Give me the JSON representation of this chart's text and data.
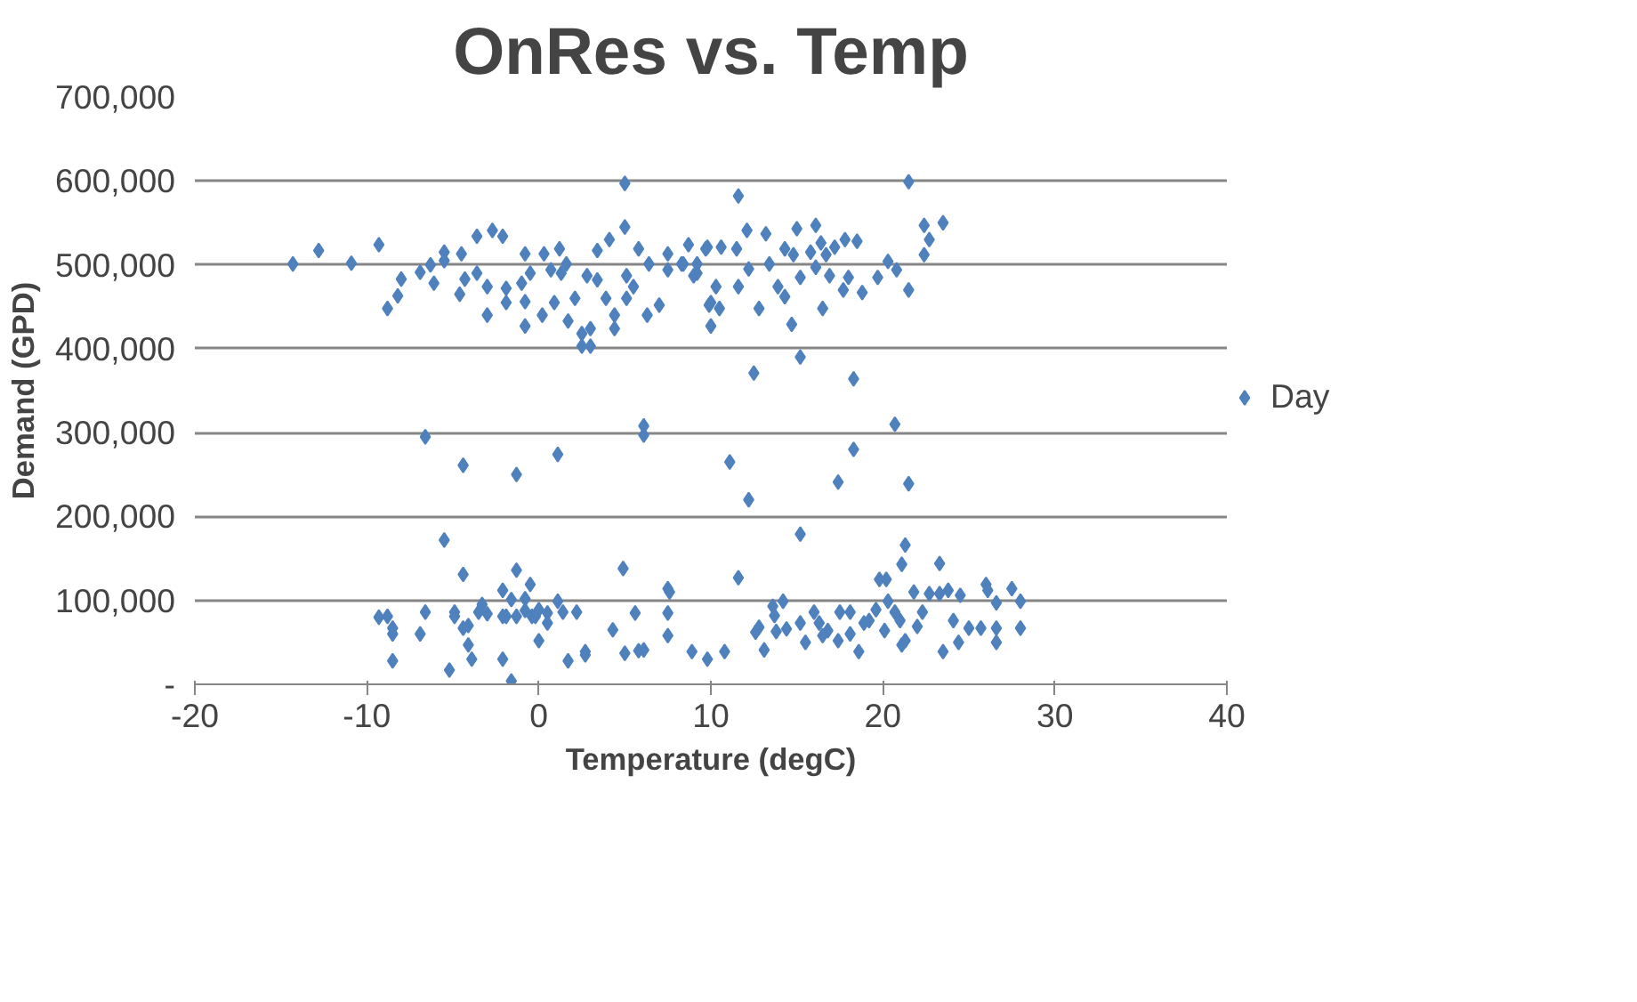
{
  "chart_data": {
    "type": "scatter",
    "title": "OnRes vs. Temp",
    "xlabel": "Temperature (degC)",
    "ylabel": "Demand (GPD)",
    "xlim": [
      -20,
      40
    ],
    "xticks": [
      -20,
      -10,
      0,
      10,
      20,
      30,
      40
    ],
    "ylim": [
      0,
      700000
    ],
    "yticks": [
      {
        "value": 0,
        "label": "-"
      },
      {
        "value": 100000,
        "label": "100,000"
      },
      {
        "value": 200000,
        "label": "200,000"
      },
      {
        "value": 300000,
        "label": "300,000"
      },
      {
        "value": 400000,
        "label": "400,000"
      },
      {
        "value": 500000,
        "label": "500,000"
      },
      {
        "value": 600000,
        "label": "600,000"
      },
      {
        "value": 700000,
        "label": "700,000"
      }
    ],
    "grid": "y",
    "legend": "right",
    "marker": "diamond",
    "series": [
      {
        "name": "Day",
        "color": "#4f81bd",
        "x": [
          -14.3,
          -12.8,
          -10.9,
          -9.3,
          -8.8,
          -8.2,
          -8.0,
          -6.9,
          -6.3,
          -6.1,
          -5.5,
          -5.5,
          -4.6,
          -4.5,
          -4.3,
          -3.6,
          -3.6,
          -3.0,
          -3.0,
          -2.7,
          -2.1,
          -1.9,
          -1.9,
          -1.0,
          -0.8,
          -0.8,
          -0.8,
          -0.5,
          0.3,
          0.2,
          0.7,
          0.9,
          1.2,
          1.3,
          1.6,
          1.7,
          2.1,
          2.5,
          2.5,
          3.0,
          3.0,
          2.8,
          3.4,
          3.4,
          3.9,
          4.1,
          4.4,
          4.4,
          5.0,
          5.0,
          5.1,
          5.1,
          5.5,
          5.8,
          6.3,
          6.4,
          7.0,
          7.5,
          7.5,
          8.3,
          8.7,
          9.2,
          9.2,
          9.7,
          10.0,
          10.0,
          8.4,
          9.0,
          9.8,
          10.6,
          11.6,
          11.5,
          11.6,
          10.3,
          9.9,
          10.5,
          12.1,
          12.2,
          12.5,
          12.8,
          13.2,
          13.4,
          13.9,
          14.3,
          14.3,
          14.7,
          14.8,
          15.0,
          15.2,
          15.2,
          15.8,
          16.1,
          16.1,
          16.4,
          16.5,
          16.7,
          16.9,
          17.2,
          17.7,
          17.8,
          18.0,
          18.3,
          18.5,
          18.8,
          19.7,
          20.3,
          20.8,
          20.7,
          21.5,
          21.5,
          22.4,
          22.7,
          22.4,
          23.5,
          -6.6,
          -4.4,
          -1.3,
          1.1,
          6.1,
          6.1,
          -5.5,
          -4.4,
          -1.3,
          4.9,
          7.5,
          7.6,
          11.1,
          12.2,
          17.4,
          18.3,
          21.5,
          15.2,
          11.6,
          21.3,
          21.1,
          23.3,
          -9.3,
          -8.8,
          -8.5,
          -8.5,
          -8.5,
          -6.9,
          -6.6,
          -5.2,
          -4.9,
          -4.9,
          -4.4,
          -4.1,
          -4.1,
          -3.9,
          -3.5,
          -3.3,
          -3.0,
          -2.1,
          -2.1,
          -2.1,
          -1.9,
          -1.6,
          -1.6,
          -1.3,
          -0.8,
          -0.8,
          -0.5,
          -0.4,
          -0.2,
          0.0,
          0.0,
          0.5,
          0.5,
          1.1,
          1.4,
          1.7,
          2.2,
          2.7,
          2.7,
          4.3,
          5.0,
          5.6,
          5.8,
          6.1,
          7.5,
          7.5,
          8.9,
          9.8,
          10.8,
          13.1,
          12.6,
          12.8,
          13.7,
          13.6,
          14.2,
          14.4,
          13.8,
          15.2,
          15.5,
          16.0,
          16.3,
          16.5,
          16.8,
          17.4,
          17.5,
          18.1,
          18.1,
          18.6,
          18.9,
          19.2,
          19.6,
          19.8,
          20.2,
          20.1,
          20.3,
          20.7,
          21.0,
          21.1,
          21.3,
          21.8,
          22.0,
          22.3,
          22.7,
          23.3,
          23.5,
          23.8,
          24.1,
          24.4,
          24.5,
          25.0,
          25.7,
          26.0,
          26.1,
          26.6,
          26.6,
          26.6,
          27.5,
          28.0,
          28.0
        ],
        "values": [
          501000,
          517000,
          502000,
          524000,
          448000,
          463000,
          483000,
          491000,
          500000,
          478000,
          515000,
          505000,
          465000,
          513000,
          483000,
          534000,
          490000,
          440000,
          474000,
          541000,
          534000,
          472000,
          455000,
          478000,
          513000,
          456000,
          427000,
          490000,
          513000,
          440000,
          494000,
          455000,
          519000,
          490000,
          501000,
          433000,
          460000,
          418000,
          403000,
          403000,
          424000,
          487000,
          517000,
          482000,
          460000,
          530000,
          424000,
          440000,
          597000,
          545000,
          487000,
          460000,
          474000,
          519000,
          440000,
          501000,
          452000,
          513000,
          494000,
          501000,
          524000,
          490000,
          501000,
          519000,
          455000,
          427000,
          501000,
          487000,
          521000,
          521000,
          582000,
          519000,
          474000,
          474000,
          452000,
          448000,
          541000,
          495000,
          371000,
          448000,
          537000,
          501000,
          474000,
          519000,
          462000,
          429000,
          512000,
          543000,
          390000,
          485000,
          515000,
          547000,
          497000,
          526000,
          448000,
          512000,
          487000,
          521000,
          470000,
          530000,
          485000,
          364000,
          528000,
          467000,
          485000,
          504000,
          494000,
          310000,
          599000,
          470000,
          547000,
          530000,
          512000,
          550000,
          295000,
          261000,
          250000,
          274000,
          308000,
          297000,
          172000,
          131000,
          136000,
          138000,
          114000,
          110000,
          265000,
          220000,
          241000,
          280000,
          239000,
          179000,
          127000,
          166000,
          143000,
          144000,
          80000,
          81000,
          67000,
          60000,
          28000,
          60000,
          86000,
          17000,
          86000,
          81000,
          67000,
          70000,
          47000,
          30000,
          86000,
          95000,
          84000,
          112000,
          81000,
          30000,
          81000,
          101000,
          4000,
          81000,
          88000,
          102000,
          119000,
          81000,
          81000,
          89000,
          52000,
          85000,
          73000,
          99000,
          86000,
          28000,
          86000,
          39000,
          35000,
          65000,
          37000,
          85000,
          40000,
          41000,
          85000,
          58000,
          39000,
          30000,
          39000,
          41000,
          62000,
          68000,
          82000,
          93000,
          99000,
          66000,
          63000,
          73000,
          50000,
          86000,
          73000,
          58000,
          64000,
          52000,
          86000,
          86000,
          60000,
          39000,
          73000,
          76000,
          89000,
          125000,
          125000,
          64000,
          99000,
          86000,
          76000,
          47000,
          52000,
          110000,
          69000,
          86000,
          108000,
          108000,
          39000,
          112000,
          76000,
          50000,
          106000,
          67000,
          67000,
          119000,
          112000,
          67000,
          50000,
          97000,
          114000,
          99000,
          67000
        ]
      }
    ]
  }
}
